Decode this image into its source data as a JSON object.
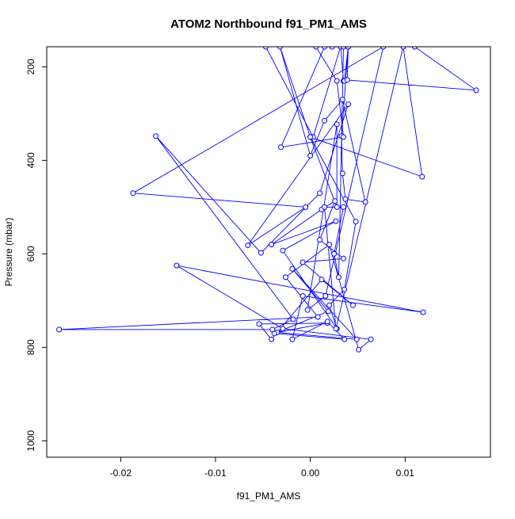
{
  "chart_data": {
    "type": "line",
    "title": "ATOM2 Northbound f91_PM1_AMS",
    "xlabel": "f91_PM1_AMS",
    "ylabel": "Pressure (mbar)",
    "xlim": [
      -0.0278,
      0.019
    ],
    "ylim": [
      1035,
      157
    ],
    "y_reversed": true,
    "x_ticks": [
      -0.02,
      -0.01,
      0.0,
      0.01
    ],
    "x_tick_labels": [
      "-0.02",
      "-0.01",
      "0.00",
      "0.01"
    ],
    "y_ticks": [
      200,
      400,
      600,
      800,
      1000
    ],
    "y_tick_labels": [
      "200",
      "400",
      "600",
      "800",
      "1000"
    ],
    "grid": false,
    "legend": "none",
    "series_color": "#0000FF",
    "marker": "open-circle",
    "series": [
      {
        "x": [
          -0.0047,
          0.0003,
          0.0032,
          0.0035,
          0.0036,
          0.004,
          0.0039,
          0.0175,
          0.011,
          0.004,
          0.0033,
          0.0034,
          0.0037,
          0.0058,
          0.0034,
          0.0015,
          0.0,
          -0.0032,
          0.0,
          0.0048,
          0.0036,
          0.002,
          0.0028,
          -0.0029,
          0.0027,
          -0.0041,
          0.0012,
          0.0026,
          0.001,
          0.0035,
          -0.0008,
          0.0045,
          0.0012,
          -0.0041,
          -0.0054,
          0.0018,
          -0.0035,
          0.0049,
          -0.0019,
          0.0019,
          -0.0038,
          0.0036,
          0.0018,
          -0.0019,
          -0.0008,
          0.0119,
          -0.0141,
          -0.0029,
          0.0064,
          0.0051,
          0.002,
          -0.0026,
          0.0008,
          -0.0265,
          -0.004,
          -0.0018,
          -0.0163,
          -0.0052,
          0.001,
          0.004,
          -0.0066,
          -0.0005,
          -0.0187,
          0.0077,
          0.0016,
          -0.0003,
          0.0028,
          0.0028,
          0.0,
          0.0118,
          0.0098,
          0.0027,
          0.0015,
          0.0035,
          0.0025,
          0.003,
          0.0035,
          0.0023,
          0.0015,
          -0.0031,
          0.0035,
          0.0028,
          0.0006
        ],
        "y": [
          157,
          350,
          157,
          230,
          230,
          157,
          228,
          250,
          157,
          157,
          348,
          428,
          483,
          489,
          270,
          315,
          390,
          157,
          350,
          531,
          676,
          710,
          760,
          593,
          530,
          580,
          505,
          487,
          570,
          610,
          618,
          710,
          655,
          783,
          750,
          748,
          768,
          783,
          632,
          723,
          770,
          783,
          745,
          783,
          690,
          725,
          625,
          760,
          783,
          805,
          580,
          650,
          735,
          762,
          762,
          740,
          348,
          598,
          470,
          280,
          582,
          500,
          470,
          157,
          690,
          720,
          323,
          500,
          350,
          435,
          157,
          760,
          500,
          500,
          600,
          650,
          157,
          157,
          157,
          372,
          350,
          230,
          157
        ]
      }
    ]
  }
}
